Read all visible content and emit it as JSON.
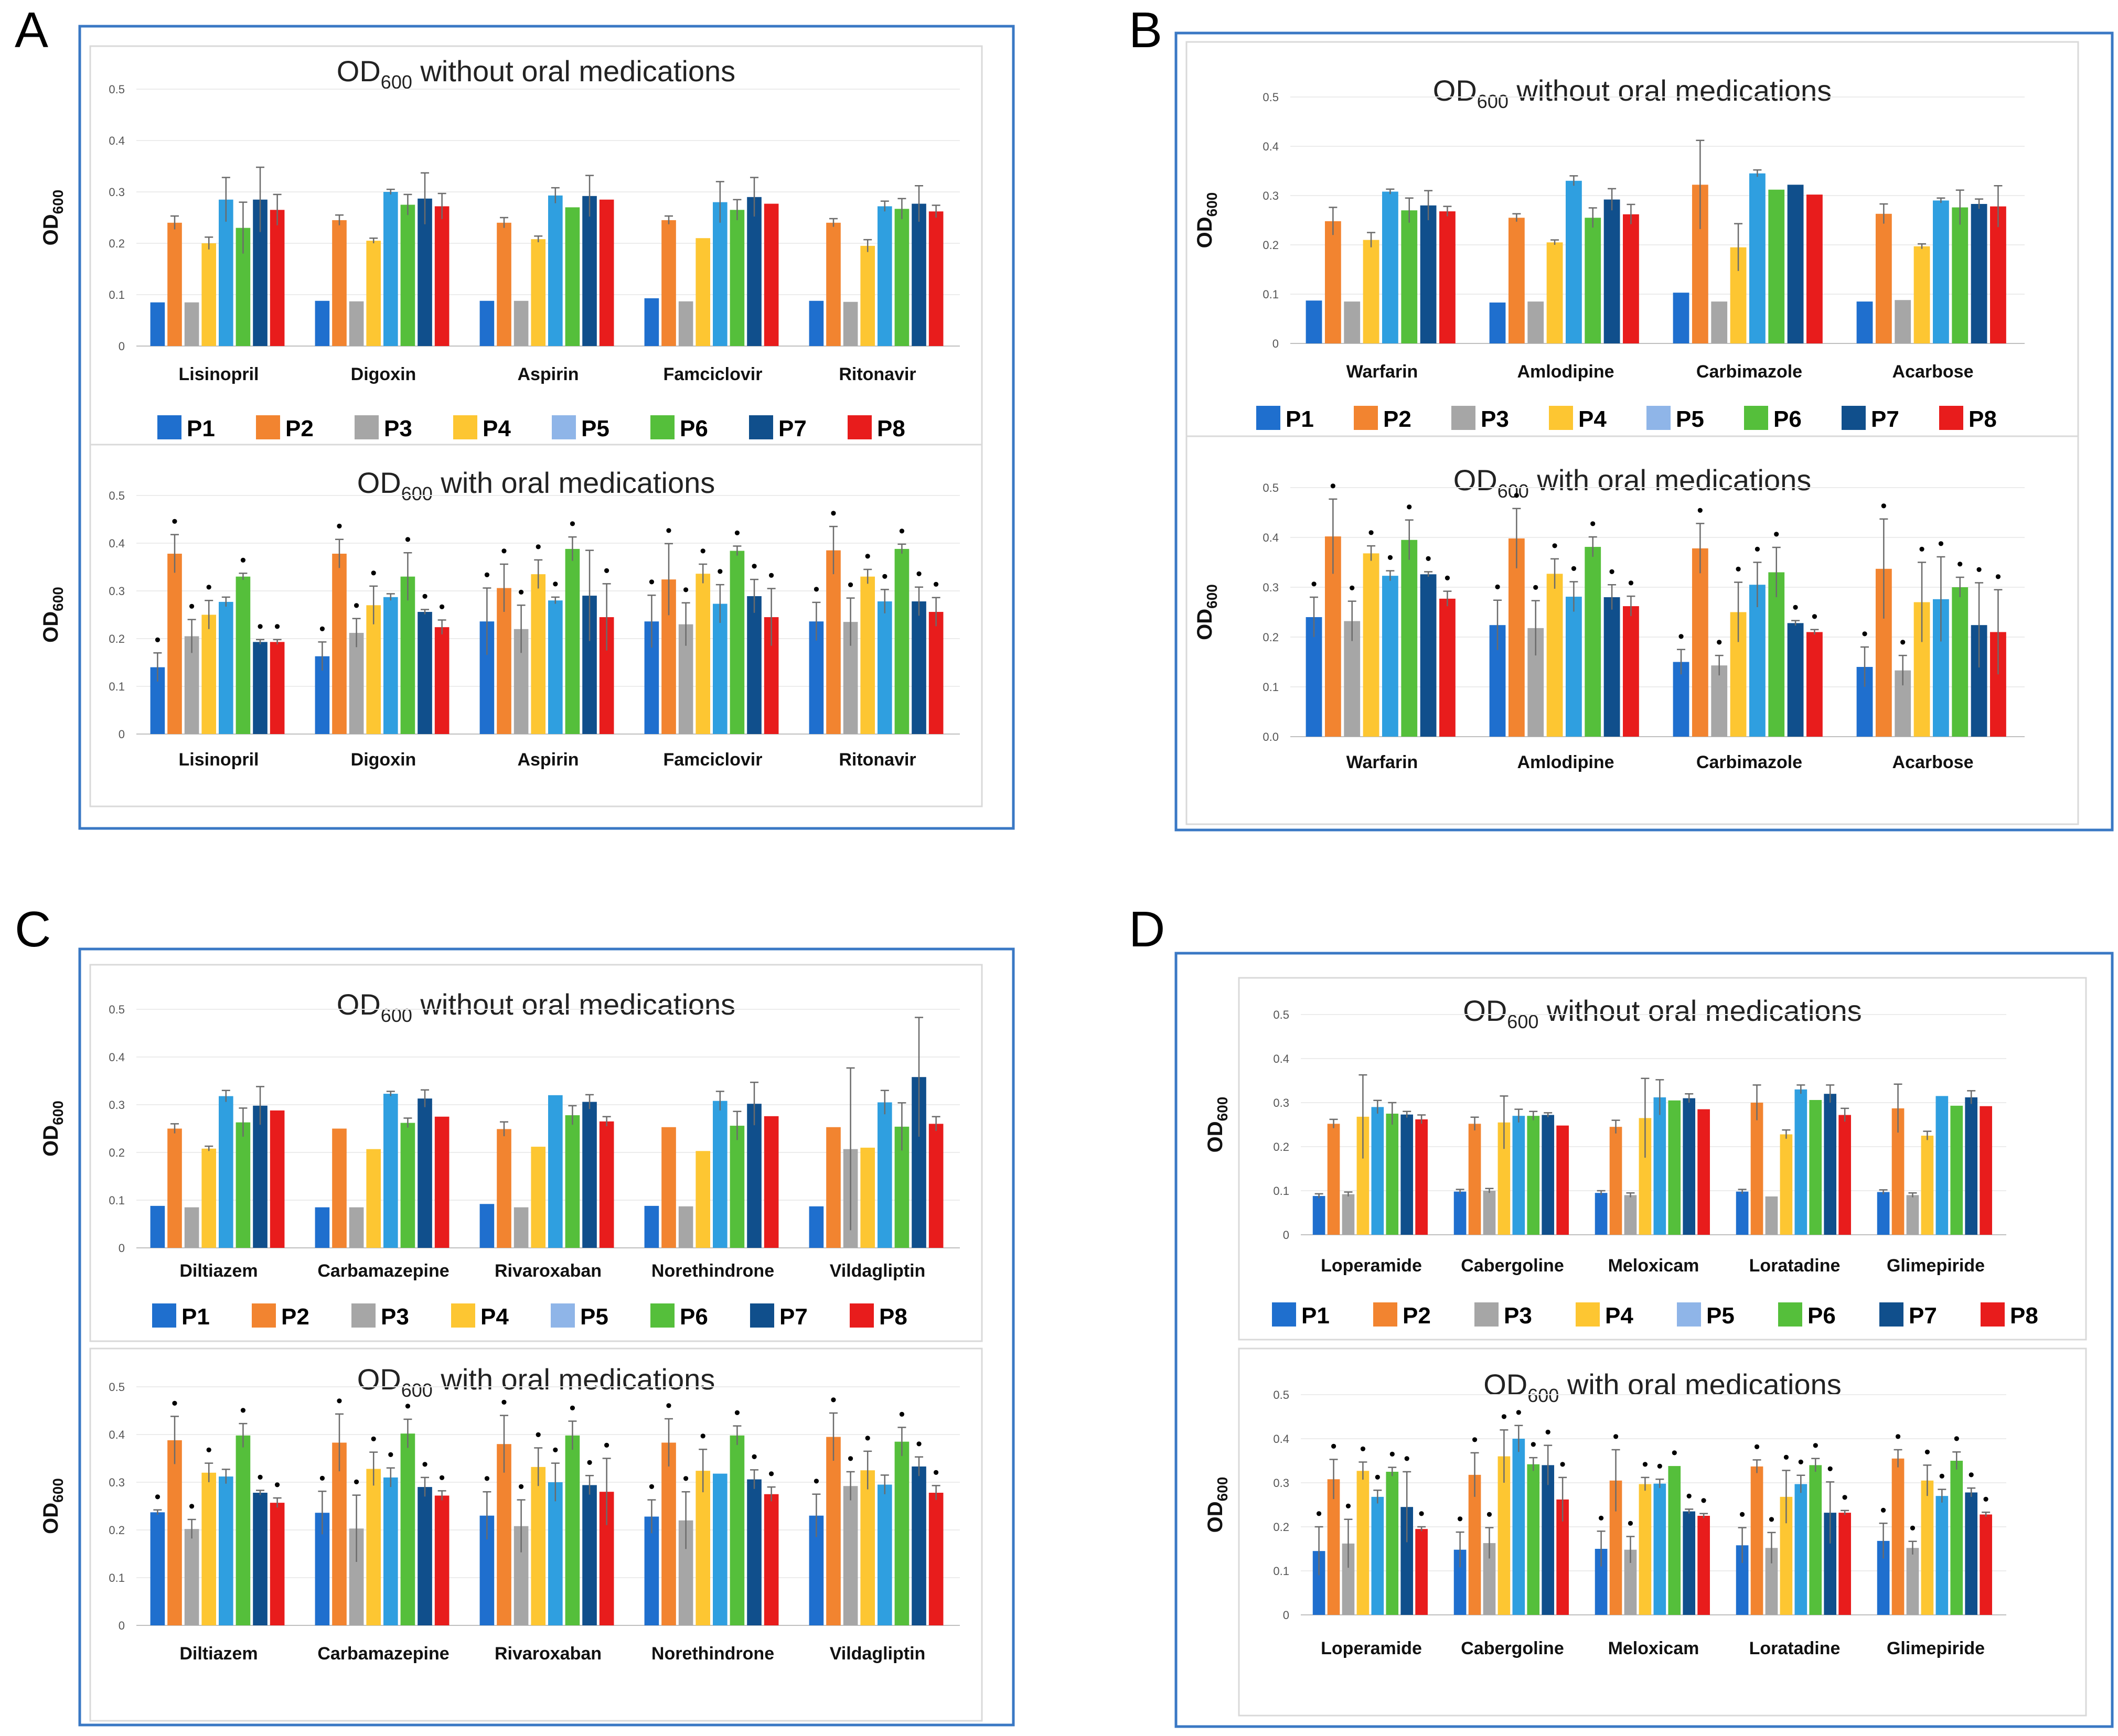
{
  "colors": [
    "#1f6fce",
    "#f28430",
    "#a6a6a6",
    "#fdc632",
    "#2f9fe0",
    "#55bf3b",
    "#104f8c",
    "#e81c1c"
  ],
  "legend_swatch_colors": [
    "#1f6fce",
    "#f28430",
    "#a6a6a6",
    "#fdc632",
    "#8fb5e8",
    "#55bf3b",
    "#104f8c",
    "#e81c1c"
  ],
  "series_names": [
    "P1",
    "P2",
    "P3",
    "P4",
    "P5",
    "P6",
    "P7",
    "P8"
  ],
  "y_tick_labels": [
    "0",
    "0.1",
    "0.2",
    "0.3",
    "0.4",
    "0.5"
  ],
  "y_tick_labels_B_with": [
    "0.0",
    "0.1",
    "0.2",
    "0.3",
    "0.4",
    "0.5"
  ],
  "ylabel_main": "OD",
  "ylabel_sub": "600",
  "title_prefix": "OD",
  "title_sub": "600",
  "title_without": " without oral medications",
  "title_with": " with oral medications",
  "significance_marker": "•",
  "chart_data": [
    {
      "panel": "A",
      "type": "bar",
      "ylim": [
        0,
        0.5
      ],
      "categories": [
        "Lisinopril",
        "Digoxin",
        "Aspirin",
        "Famciclovir",
        "Ritonavir"
      ],
      "without": {
        "values": [
          [
            0.085,
            0.24,
            0.085,
            0.2,
            0.285,
            0.23,
            0.285,
            0.265
          ],
          [
            0.088,
            0.245,
            0.087,
            0.205,
            0.3,
            0.275,
            0.287,
            0.272
          ],
          [
            0.088,
            0.24,
            0.088,
            0.208,
            0.293,
            0.27,
            0.292,
            0.285
          ],
          [
            0.093,
            0.245,
            0.087,
            0.21,
            0.28,
            0.265,
            0.29,
            0.277
          ],
          [
            0.088,
            0.24,
            0.086,
            0.195,
            0.272,
            0.267,
            0.277,
            0.262
          ]
        ],
        "errors": [
          [
            0.0,
            0.013,
            0.0,
            0.012,
            0.043,
            0.05,
            0.063,
            0.03
          ],
          [
            0.0,
            0.01,
            0.0,
            0.005,
            0.005,
            0.02,
            0.05,
            0.025
          ],
          [
            0.0,
            0.01,
            0.0,
            0.006,
            0.015,
            0.0,
            0.04,
            0.0
          ],
          [
            0.0,
            0.008,
            0.0,
            0.0,
            0.04,
            0.02,
            0.038,
            0.0
          ],
          [
            0.0,
            0.008,
            0.0,
            0.012,
            0.01,
            0.02,
            0.035,
            0.012
          ]
        ]
      },
      "with": {
        "values": [
          [
            0.14,
            0.378,
            0.205,
            0.25,
            0.277,
            0.33,
            0.193,
            0.193
          ],
          [
            0.163,
            0.378,
            0.212,
            0.27,
            0.287,
            0.33,
            0.256,
            0.224
          ],
          [
            0.236,
            0.306,
            0.22,
            0.335,
            0.28,
            0.388,
            0.29,
            0.245
          ],
          [
            0.236,
            0.324,
            0.23,
            0.336,
            0.273,
            0.384,
            0.289,
            0.245
          ],
          [
            0.236,
            0.385,
            0.235,
            0.33,
            0.278,
            0.388,
            0.278,
            0.256
          ]
        ],
        "errors": [
          [
            0.03,
            0.04,
            0.035,
            0.03,
            0.01,
            0.007,
            0.005,
            0.005
          ],
          [
            0.03,
            0.03,
            0.03,
            0.04,
            0.007,
            0.05,
            0.005,
            0.015
          ],
          [
            0.07,
            0.05,
            0.05,
            0.03,
            0.007,
            0.025,
            0.095,
            0.07
          ],
          [
            0.055,
            0.075,
            0.045,
            0.02,
            0.04,
            0.01,
            0.035,
            0.06
          ],
          [
            0.04,
            0.05,
            0.05,
            0.015,
            0.025,
            0.01,
            0.03,
            0.03
          ]
        ],
        "markers": [
          [
            true,
            true,
            true,
            true,
            false,
            true,
            true,
            true
          ],
          [
            true,
            true,
            true,
            true,
            false,
            true,
            true,
            true
          ],
          [
            true,
            true,
            true,
            true,
            true,
            true,
            false,
            true
          ],
          [
            true,
            true,
            true,
            true,
            true,
            true,
            true,
            true
          ],
          [
            true,
            true,
            true,
            true,
            true,
            true,
            true,
            true
          ]
        ]
      }
    },
    {
      "panel": "B",
      "type": "bar",
      "ylim": [
        0,
        0.5
      ],
      "categories": [
        "Warfarin",
        "Amlodipine",
        "Carbimazole",
        "Acarbose"
      ],
      "without": {
        "values": [
          [
            0.087,
            0.248,
            0.085,
            0.21,
            0.308,
            0.27,
            0.28,
            0.268
          ],
          [
            0.083,
            0.255,
            0.085,
            0.205,
            0.33,
            0.255,
            0.292,
            0.262
          ],
          [
            0.103,
            0.322,
            0.085,
            0.195,
            0.345,
            0.312,
            0.322,
            0.302
          ],
          [
            0.085,
            0.263,
            0.088,
            0.197,
            0.29,
            0.276,
            0.283,
            0.278
          ]
        ],
        "errors": [
          [
            0.0,
            0.028,
            0.0,
            0.015,
            0.005,
            0.025,
            0.03,
            0.01
          ],
          [
            0.0,
            0.008,
            0.0,
            0.005,
            0.01,
            0.02,
            0.022,
            0.02
          ],
          [
            0.0,
            0.09,
            0.0,
            0.048,
            0.007,
            0.0,
            0.0,
            0.0
          ],
          [
            0.0,
            0.02,
            0.0,
            0.005,
            0.005,
            0.035,
            0.01,
            0.042
          ]
        ]
      },
      "with": {
        "values": [
          [
            0.24,
            0.402,
            0.232,
            0.368,
            0.323,
            0.395,
            0.326,
            0.277
          ],
          [
            0.224,
            0.398,
            0.218,
            0.327,
            0.281,
            0.381,
            0.28,
            0.262
          ],
          [
            0.15,
            0.378,
            0.143,
            0.25,
            0.305,
            0.33,
            0.228,
            0.21
          ],
          [
            0.14,
            0.337,
            0.133,
            0.27,
            0.276,
            0.3,
            0.224,
            0.21
          ]
        ],
        "errors": [
          [
            0.04,
            0.075,
            0.04,
            0.015,
            0.01,
            0.04,
            0.005,
            0.015
          ],
          [
            0.05,
            0.06,
            0.055,
            0.03,
            0.03,
            0.02,
            0.025,
            0.02
          ],
          [
            0.025,
            0.05,
            0.02,
            0.06,
            0.045,
            0.05,
            0.005,
            0.005
          ],
          [
            0.04,
            0.1,
            0.03,
            0.08,
            0.085,
            0.02,
            0.085,
            0.085
          ]
        ],
        "markers": [
          [
            true,
            true,
            true,
            true,
            true,
            true,
            true,
            true
          ],
          [
            true,
            true,
            true,
            true,
            true,
            true,
            true,
            true
          ],
          [
            true,
            true,
            true,
            true,
            true,
            true,
            true,
            true
          ],
          [
            true,
            true,
            true,
            true,
            true,
            true,
            true,
            true
          ]
        ]
      }
    },
    {
      "panel": "C",
      "type": "bar",
      "ylim": [
        0,
        0.5
      ],
      "categories": [
        "Diltiazem",
        "Carbamazepine",
        "Rivaroxaban",
        "Norethindrone",
        "Vildagliptin"
      ],
      "without": {
        "values": [
          [
            0.088,
            0.25,
            0.085,
            0.208,
            0.318,
            0.263,
            0.298,
            0.288
          ],
          [
            0.085,
            0.25,
            0.085,
            0.207,
            0.323,
            0.262,
            0.313,
            0.275
          ],
          [
            0.092,
            0.249,
            0.085,
            0.212,
            0.32,
            0.278,
            0.306,
            0.265
          ],
          [
            0.088,
            0.253,
            0.087,
            0.203,
            0.308,
            0.256,
            0.302,
            0.276
          ],
          [
            0.087,
            0.253,
            0.207,
            0.21,
            0.305,
            0.254,
            0.358,
            0.26
          ]
        ],
        "errors": [
          [
            0.0,
            0.01,
            0.0,
            0.005,
            0.012,
            0.03,
            0.04,
            0.0
          ],
          [
            0.0,
            0.0,
            0.0,
            0.0,
            0.005,
            0.01,
            0.018,
            0.0
          ],
          [
            0.0,
            0.015,
            0.0,
            0.0,
            0.0,
            0.02,
            0.015,
            0.01
          ],
          [
            0.0,
            0.0,
            0.0,
            0.0,
            0.02,
            0.03,
            0.045,
            0.0
          ],
          [
            0.0,
            0.0,
            0.17,
            0.0,
            0.025,
            0.05,
            0.125,
            0.015
          ]
        ]
      },
      "with": {
        "values": [
          [
            0.237,
            0.388,
            0.202,
            0.32,
            0.312,
            0.398,
            0.278,
            0.257
          ],
          [
            0.236,
            0.383,
            0.203,
            0.328,
            0.31,
            0.402,
            0.29,
            0.272
          ],
          [
            0.23,
            0.38,
            0.208,
            0.332,
            0.3,
            0.398,
            0.294,
            0.28
          ],
          [
            0.228,
            0.383,
            0.22,
            0.324,
            0.318,
            0.398,
            0.306,
            0.275
          ],
          [
            0.23,
            0.395,
            0.292,
            0.325,
            0.295,
            0.385,
            0.333,
            0.278
          ]
        ],
        "errors": [
          [
            0.005,
            0.05,
            0.02,
            0.02,
            0.015,
            0.025,
            0.005,
            0.01
          ],
          [
            0.045,
            0.06,
            0.07,
            0.035,
            0.02,
            0.03,
            0.02,
            0.01
          ],
          [
            0.05,
            0.06,
            0.055,
            0.04,
            0.04,
            0.03,
            0.02,
            0.07
          ],
          [
            0.035,
            0.05,
            0.06,
            0.045,
            0.0,
            0.02,
            0.02,
            0.015
          ],
          [
            0.045,
            0.05,
            0.03,
            0.04,
            0.02,
            0.03,
            0.02,
            0.015
          ]
        ],
        "markers": [
          [
            true,
            true,
            true,
            true,
            false,
            true,
            true,
            true
          ],
          [
            true,
            true,
            true,
            true,
            true,
            true,
            true,
            true
          ],
          [
            true,
            true,
            true,
            true,
            true,
            true,
            true,
            true
          ],
          [
            true,
            true,
            true,
            true,
            false,
            true,
            true,
            true
          ],
          [
            true,
            true,
            true,
            true,
            false,
            true,
            true,
            true
          ]
        ]
      }
    },
    {
      "panel": "D",
      "type": "bar",
      "ylim": [
        0,
        0.5
      ],
      "categories": [
        "Loperamide",
        "Cabergoline",
        "Meloxicam",
        "Loratadine",
        "Glimepiride"
      ],
      "without": {
        "values": [
          [
            0.088,
            0.252,
            0.092,
            0.268,
            0.29,
            0.275,
            0.273,
            0.262
          ],
          [
            0.098,
            0.252,
            0.1,
            0.255,
            0.27,
            0.27,
            0.272,
            0.248
          ],
          [
            0.095,
            0.245,
            0.09,
            0.265,
            0.312,
            0.305,
            0.31,
            0.285
          ],
          [
            0.098,
            0.3,
            0.087,
            0.228,
            0.33,
            0.306,
            0.32,
            0.272
          ],
          [
            0.097,
            0.287,
            0.09,
            0.225,
            0.315,
            0.293,
            0.312,
            0.292
          ]
        ],
        "errors": [
          [
            0.005,
            0.01,
            0.005,
            0.095,
            0.015,
            0.025,
            0.007,
            0.01
          ],
          [
            0.005,
            0.015,
            0.005,
            0.06,
            0.015,
            0.01,
            0.005,
            0.0
          ],
          [
            0.005,
            0.015,
            0.005,
            0.09,
            0.04,
            0.0,
            0.01,
            0.0
          ],
          [
            0.005,
            0.04,
            0.0,
            0.01,
            0.01,
            0.0,
            0.02,
            0.015
          ],
          [
            0.005,
            0.055,
            0.005,
            0.01,
            0.0,
            0.0,
            0.015,
            0.0
          ]
        ]
      },
      "with": {
        "values": [
          [
            0.145,
            0.308,
            0.162,
            0.327,
            0.268,
            0.325,
            0.245,
            0.195
          ],
          [
            0.148,
            0.318,
            0.163,
            0.36,
            0.4,
            0.342,
            0.34,
            0.262
          ],
          [
            0.15,
            0.305,
            0.148,
            0.297,
            0.298,
            0.338,
            0.235,
            0.225
          ],
          [
            0.158,
            0.337,
            0.152,
            0.268,
            0.297,
            0.34,
            0.232,
            0.232
          ],
          [
            0.168,
            0.355,
            0.152,
            0.305,
            0.27,
            0.35,
            0.278,
            0.228
          ]
        ],
        "errors": [
          [
            0.055,
            0.045,
            0.055,
            0.02,
            0.015,
            0.01,
            0.08,
            0.005
          ],
          [
            0.04,
            0.05,
            0.035,
            0.06,
            0.03,
            0.015,
            0.045,
            0.05
          ],
          [
            0.04,
            0.07,
            0.03,
            0.015,
            0.01,
            0.0,
            0.005,
            0.005
          ],
          [
            0.04,
            0.015,
            0.035,
            0.06,
            0.02,
            0.015,
            0.07,
            0.005
          ],
          [
            0.04,
            0.02,
            0.015,
            0.035,
            0.015,
            0.02,
            0.01,
            0.005
          ]
        ],
        "markers": [
          [
            true,
            true,
            true,
            true,
            true,
            true,
            true,
            true
          ],
          [
            true,
            true,
            true,
            true,
            true,
            true,
            true,
            true
          ],
          [
            true,
            true,
            true,
            true,
            true,
            true,
            true,
            true
          ],
          [
            true,
            true,
            true,
            true,
            true,
            true,
            true,
            true
          ],
          [
            true,
            true,
            true,
            true,
            true,
            true,
            true,
            true
          ]
        ]
      }
    }
  ]
}
